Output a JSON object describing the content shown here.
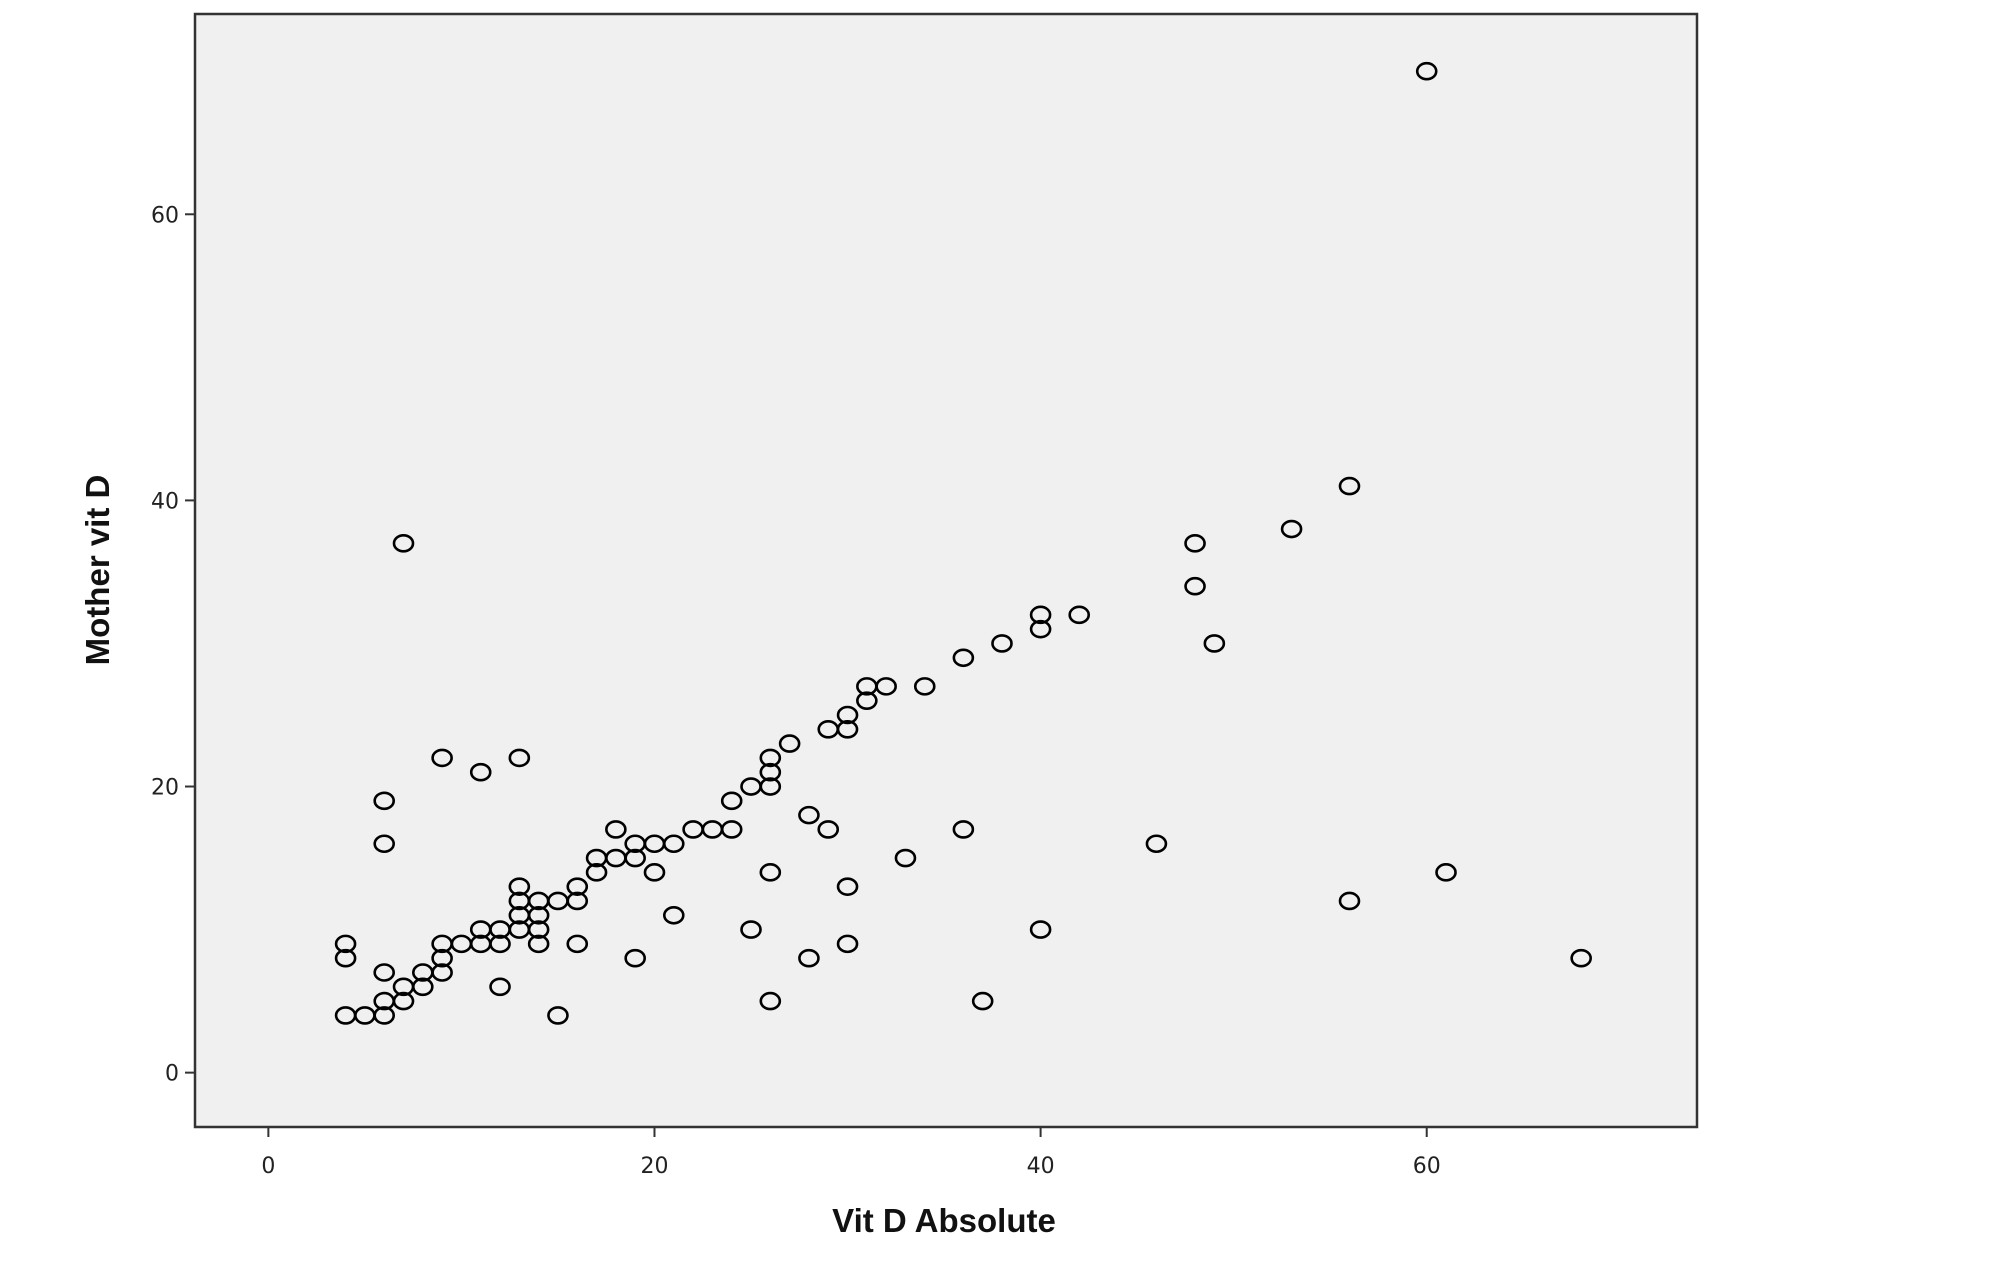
{
  "chart_data": {
    "type": "scatter",
    "title": "",
    "xlabel": "Vit D Absolute",
    "ylabel": "Mother vit D",
    "xlim": [
      -3.8,
      74
    ],
    "ylim": [
      -3.8,
      74
    ],
    "xticks": [
      0,
      20,
      40,
      60
    ],
    "yticks": [
      0,
      20,
      40,
      60
    ],
    "grid": false,
    "legend": "none",
    "colors": {
      "plot_background": "#f0f0f0",
      "frame": "#333333",
      "marker": "#000000"
    },
    "points": [
      [
        4,
        4
      ],
      [
        4,
        8
      ],
      [
        4,
        9
      ],
      [
        5,
        4
      ],
      [
        6,
        4
      ],
      [
        6,
        5
      ],
      [
        6,
        7
      ],
      [
        6,
        16
      ],
      [
        6,
        19
      ],
      [
        7,
        5
      ],
      [
        7,
        6
      ],
      [
        7,
        37
      ],
      [
        8,
        6
      ],
      [
        8,
        7
      ],
      [
        9,
        7
      ],
      [
        9,
        8
      ],
      [
        9,
        9
      ],
      [
        9,
        22
      ],
      [
        10,
        9
      ],
      [
        11,
        9
      ],
      [
        11,
        10
      ],
      [
        11,
        21
      ],
      [
        12,
        6
      ],
      [
        12,
        9
      ],
      [
        12,
        10
      ],
      [
        13,
        10
      ],
      [
        13,
        11
      ],
      [
        13,
        12
      ],
      [
        13,
        13
      ],
      [
        13,
        22
      ],
      [
        14,
        9
      ],
      [
        14,
        10
      ],
      [
        14,
        11
      ],
      [
        14,
        12
      ],
      [
        15,
        4
      ],
      [
        15,
        12
      ],
      [
        16,
        9
      ],
      [
        16,
        12
      ],
      [
        16,
        13
      ],
      [
        17,
        14
      ],
      [
        17,
        15
      ],
      [
        18,
        15
      ],
      [
        18,
        17
      ],
      [
        19,
        8
      ],
      [
        19,
        15
      ],
      [
        19,
        16
      ],
      [
        20,
        14
      ],
      [
        20,
        16
      ],
      [
        21,
        11
      ],
      [
        21,
        16
      ],
      [
        22,
        17
      ],
      [
        23,
        17
      ],
      [
        24,
        17
      ],
      [
        24,
        19
      ],
      [
        25,
        10
      ],
      [
        25,
        20
      ],
      [
        26,
        5
      ],
      [
        26,
        14
      ],
      [
        26,
        20
      ],
      [
        26,
        21
      ],
      [
        26,
        22
      ],
      [
        27,
        23
      ],
      [
        28,
        8
      ],
      [
        28,
        18
      ],
      [
        29,
        17
      ],
      [
        29,
        24
      ],
      [
        30,
        9
      ],
      [
        30,
        13
      ],
      [
        30,
        24
      ],
      [
        30,
        25
      ],
      [
        31,
        26
      ],
      [
        31,
        27
      ],
      [
        32,
        27
      ],
      [
        33,
        15
      ],
      [
        34,
        27
      ],
      [
        36,
        17
      ],
      [
        36,
        29
      ],
      [
        37,
        5
      ],
      [
        38,
        30
      ],
      [
        40,
        10
      ],
      [
        40,
        31
      ],
      [
        40,
        32
      ],
      [
        42,
        32
      ],
      [
        46,
        16
      ],
      [
        48,
        34
      ],
      [
        48,
        37
      ],
      [
        49,
        30
      ],
      [
        53,
        38
      ],
      [
        56,
        12
      ],
      [
        56,
        41
      ],
      [
        60,
        70
      ],
      [
        61,
        14
      ],
      [
        68,
        8
      ]
    ]
  }
}
